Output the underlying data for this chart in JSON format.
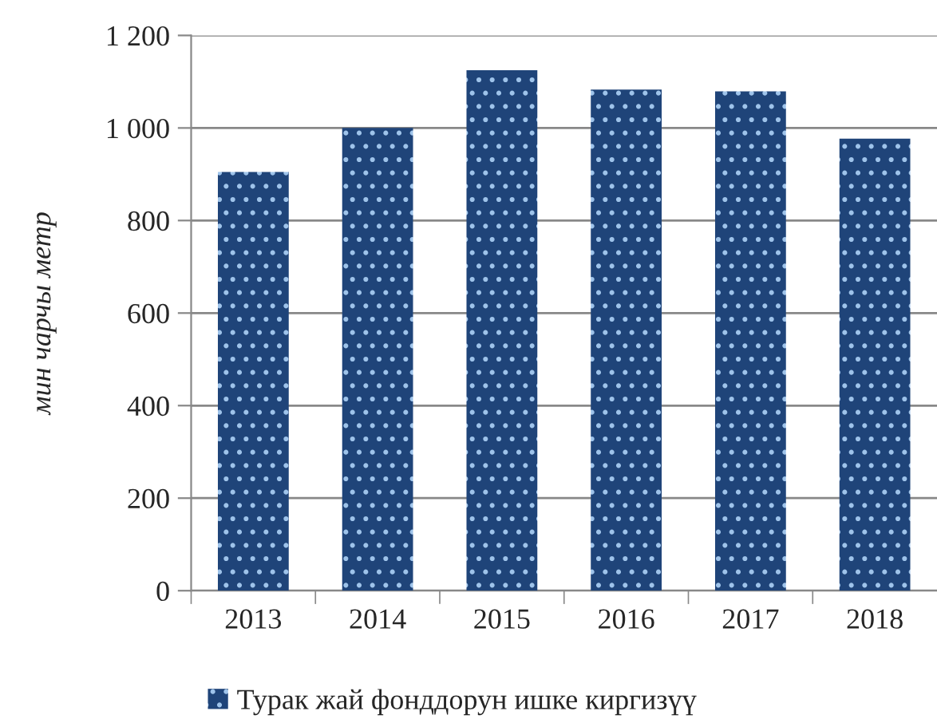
{
  "chart_data": {
    "type": "bar",
    "ylabel": "мин чарчы метр",
    "categories": [
      "2013",
      "2014",
      "2015",
      "2016",
      "2017",
      "2018"
    ],
    "series": [
      {
        "name": "Турак жай фонддорун ишке киргизүү",
        "color": "#1f4479",
        "values": [
          905,
          1000,
          1125,
          1083,
          1079,
          977
        ]
      }
    ],
    "ylim": [
      0,
      1200
    ],
    "yticks": [
      0,
      {
        "value": 200,
        "label": "200"
      },
      {
        "value": 400,
        "label": "400"
      },
      {
        "value": 600,
        "label": "600"
      },
      {
        "value": 800,
        "label": "800"
      },
      {
        "value": 1000,
        "label": "1 000"
      },
      {
        "value": 1200,
        "label": "1 200"
      }
    ],
    "grid": "y",
    "legend": "bottom"
  }
}
